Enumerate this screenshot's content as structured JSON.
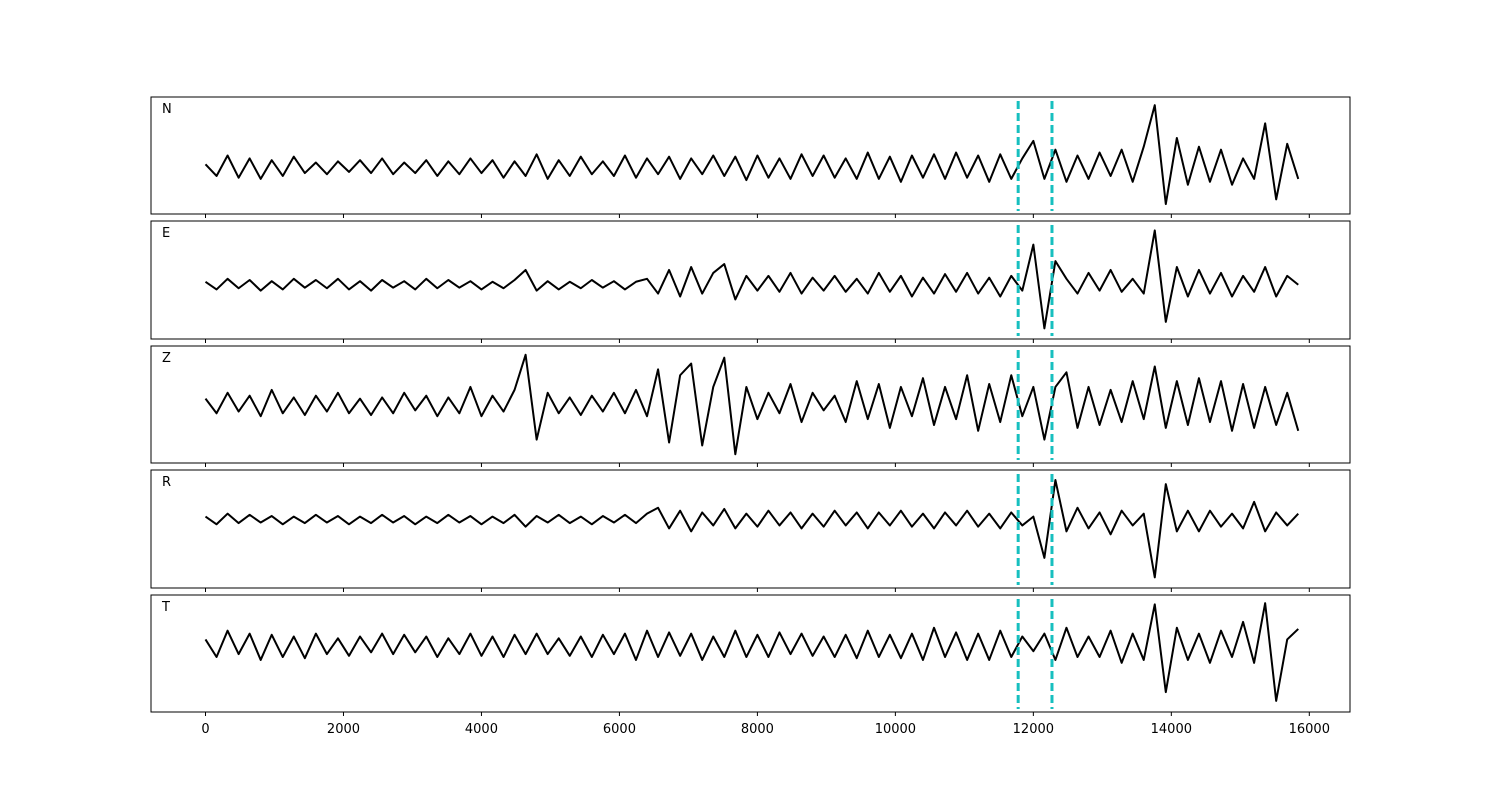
{
  "chart_data": {
    "type": "line",
    "x": [
      0,
      160,
      320,
      480,
      640,
      800,
      960,
      1120,
      1280,
      1440,
      1600,
      1760,
      1920,
      2080,
      2240,
      2400,
      2560,
      2720,
      2880,
      3040,
      3200,
      3360,
      3520,
      3680,
      3840,
      4000,
      4160,
      4320,
      4480,
      4640,
      4800,
      4960,
      5120,
      5280,
      5440,
      5600,
      5760,
      5920,
      6080,
      6240,
      6400,
      6560,
      6720,
      6880,
      7040,
      7200,
      7360,
      7520,
      7680,
      7840,
      8000,
      8160,
      8320,
      8480,
      8640,
      8800,
      8960,
      9120,
      9280,
      9440,
      9600,
      9760,
      9920,
      10080,
      10240,
      10400,
      10560,
      10720,
      10880,
      11040,
      11200,
      11360,
      11520,
      11680,
      11840,
      12000,
      12160,
      12320,
      12480,
      12640,
      12800,
      12960,
      13120,
      13280,
      13440,
      13600,
      13760,
      13920,
      14080,
      14240,
      14400,
      14560,
      14720,
      14880,
      15040,
      15200,
      15360,
      15520,
      15680,
      15840
    ],
    "xlim": [
      -790,
      16590
    ],
    "xticks": [
      0,
      2000,
      4000,
      6000,
      8000,
      10000,
      12000,
      14000,
      16000
    ],
    "markers": [
      11780,
      12270
    ],
    "marker_color": "#17bfbf",
    "series": [
      {
        "name": "N",
        "color": "#000000",
        "ylim": [
          -0.8,
          1.2
        ],
        "values": [
          0.05,
          -0.15,
          0.2,
          -0.18,
          0.15,
          -0.2,
          0.12,
          -0.15,
          0.18,
          -0.1,
          0.08,
          -0.12,
          0.1,
          -0.08,
          0.12,
          -0.1,
          0.15,
          -0.12,
          0.08,
          -0.1,
          0.12,
          -0.15,
          0.1,
          -0.12,
          0.15,
          -0.1,
          0.12,
          -0.18,
          0.1,
          -0.15,
          0.22,
          -0.2,
          0.12,
          -0.15,
          0.18,
          -0.12,
          0.1,
          -0.15,
          0.2,
          -0.18,
          0.15,
          -0.12,
          0.18,
          -0.2,
          0.15,
          -0.12,
          0.2,
          -0.15,
          0.18,
          -0.22,
          0.2,
          -0.18,
          0.15,
          -0.2,
          0.22,
          -0.15,
          0.2,
          -0.18,
          0.15,
          -0.2,
          0.25,
          -0.2,
          0.18,
          -0.25,
          0.2,
          -0.18,
          0.22,
          -0.2,
          0.25,
          -0.18,
          0.2,
          -0.25,
          0.22,
          -0.2,
          0.15,
          0.45,
          -0.2,
          0.3,
          -0.25,
          0.2,
          -0.2,
          0.25,
          -0.15,
          0.3,
          -0.25,
          0.35,
          1.06,
          -0.63,
          0.5,
          -0.3,
          0.35,
          -0.25,
          0.3,
          -0.3,
          0.15,
          -0.2,
          0.75,
          -0.55,
          0.4,
          -0.2
        ]
      },
      {
        "name": "E",
        "color": "#000000",
        "ylim": [
          -0.92,
          1.08
        ],
        "values": [
          0.05,
          -0.08,
          0.1,
          -0.06,
          0.08,
          -0.1,
          0.06,
          -0.08,
          0.1,
          -0.05,
          0.08,
          -0.06,
          0.1,
          -0.08,
          0.06,
          -0.1,
          0.08,
          -0.05,
          0.06,
          -0.08,
          0.1,
          -0.06,
          0.08,
          -0.05,
          0.06,
          -0.08,
          0.05,
          -0.06,
          0.08,
          0.25,
          -0.1,
          0.06,
          -0.08,
          0.05,
          -0.06,
          0.08,
          -0.05,
          0.06,
          -0.08,
          0.05,
          0.1,
          -0.15,
          0.25,
          -0.2,
          0.3,
          -0.15,
          0.2,
          0.35,
          -0.25,
          0.15,
          -0.1,
          0.15,
          -0.12,
          0.2,
          -0.15,
          0.12,
          -0.1,
          0.15,
          -0.12,
          0.1,
          -0.15,
          0.2,
          -0.12,
          0.15,
          -0.2,
          0.12,
          -0.15,
          0.18,
          -0.12,
          0.2,
          -0.15,
          0.12,
          -0.2,
          0.15,
          -0.1,
          0.68,
          -0.74,
          0.4,
          0.1,
          -0.15,
          0.2,
          -0.1,
          0.25,
          -0.12,
          0.1,
          -0.15,
          0.92,
          -0.63,
          0.3,
          -0.2,
          0.25,
          -0.15,
          0.2,
          -0.2,
          0.15,
          -0.12,
          0.3,
          -0.2,
          0.15,
          0
        ]
      },
      {
        "name": "Z",
        "color": "#000000",
        "ylim": [
          -1,
          1
        ],
        "values": [
          0.1,
          -0.15,
          0.2,
          -0.12,
          0.15,
          -0.2,
          0.25,
          -0.15,
          0.12,
          -0.18,
          0.15,
          -0.12,
          0.2,
          -0.15,
          0.1,
          -0.18,
          0.12,
          -0.15,
          0.2,
          -0.1,
          0.15,
          -0.2,
          0.12,
          -0.15,
          0.3,
          -0.2,
          0.15,
          -0.12,
          0.25,
          0.85,
          -0.6,
          0.2,
          -0.15,
          0.12,
          -0.18,
          0.15,
          -0.12,
          0.2,
          -0.15,
          0.25,
          -0.2,
          0.6,
          -0.65,
          0.5,
          0.7,
          -0.7,
          0.3,
          0.8,
          -0.85,
          0.3,
          -0.25,
          0.2,
          -0.15,
          0.35,
          -0.3,
          0.2,
          -0.1,
          0.15,
          -0.3,
          0.4,
          -0.25,
          0.35,
          -0.4,
          0.3,
          -0.2,
          0.45,
          -0.35,
          0.3,
          -0.25,
          0.5,
          -0.45,
          0.35,
          -0.3,
          0.5,
          -0.2,
          0.3,
          -0.6,
          0.3,
          0.55,
          -0.4,
          0.3,
          -0.35,
          0.25,
          -0.3,
          0.4,
          -0.25,
          0.65,
          -0.4,
          0.4,
          -0.35,
          0.45,
          -0.3,
          0.4,
          -0.45,
          0.35,
          -0.4,
          0.3,
          -0.35,
          0.2,
          -0.45
        ]
      },
      {
        "name": "R",
        "color": "#000000",
        "ylim": [
          -1.16,
          0.84
        ],
        "values": [
          0.05,
          -0.08,
          0.1,
          -0.06,
          0.08,
          -0.05,
          0.06,
          -0.08,
          0.05,
          -0.06,
          0.08,
          -0.05,
          0.06,
          -0.08,
          0.05,
          -0.06,
          0.08,
          -0.05,
          0.06,
          -0.08,
          0.05,
          -0.06,
          0.08,
          -0.05,
          0.06,
          -0.08,
          0.05,
          -0.06,
          0.08,
          -0.12,
          0.06,
          -0.05,
          0.08,
          -0.06,
          0.05,
          -0.08,
          0.06,
          -0.05,
          0.08,
          -0.06,
          0.1,
          0.2,
          -0.15,
          0.15,
          -0.2,
          0.12,
          -0.1,
          0.18,
          -0.15,
          0.1,
          -0.12,
          0.15,
          -0.1,
          0.12,
          -0.15,
          0.1,
          -0.12,
          0.15,
          -0.1,
          0.12,
          -0.15,
          0.12,
          -0.1,
          0.15,
          -0.12,
          0.1,
          -0.15,
          0.12,
          -0.1,
          0.15,
          -0.12,
          0.1,
          -0.15,
          0.12,
          -0.1,
          0.05,
          -0.65,
          0.67,
          -0.2,
          0.2,
          -0.15,
          0.12,
          -0.25,
          0.15,
          -0.1,
          0.1,
          -0.98,
          0.6,
          -0.2,
          0.15,
          -0.2,
          0.15,
          -0.12,
          0.1,
          -0.15,
          0.3,
          -0.2,
          0.12,
          -0.1,
          0.1
        ]
      },
      {
        "name": "T",
        "color": "#000000",
        "ylim": [
          -1.14,
          0.86
        ],
        "values": [
          0.1,
          -0.2,
          0.25,
          -0.15,
          0.2,
          -0.25,
          0.18,
          -0.2,
          0.15,
          -0.22,
          0.2,
          -0.15,
          0.12,
          -0.18,
          0.15,
          -0.12,
          0.2,
          -0.15,
          0.18,
          -0.12,
          0.15,
          -0.2,
          0.12,
          -0.15,
          0.2,
          -0.18,
          0.15,
          -0.2,
          0.18,
          -0.15,
          0.2,
          -0.15,
          0.12,
          -0.18,
          0.15,
          -0.2,
          0.18,
          -0.15,
          0.2,
          -0.25,
          0.25,
          -0.2,
          0.22,
          -0.18,
          0.2,
          -0.25,
          0.15,
          -0.2,
          0.25,
          -0.2,
          0.18,
          -0.2,
          0.22,
          -0.15,
          0.2,
          -0.18,
          0.15,
          -0.2,
          0.18,
          -0.22,
          0.25,
          -0.2,
          0.18,
          -0.22,
          0.2,
          -0.25,
          0.3,
          -0.2,
          0.22,
          -0.25,
          0.2,
          -0.25,
          0.25,
          -0.2,
          0.15,
          -0.1,
          0.2,
          -0.25,
          0.3,
          -0.2,
          0.15,
          -0.2,
          0.25,
          -0.3,
          0.2,
          -0.25,
          0.7,
          -0.8,
          0.3,
          -0.25,
          0.2,
          -0.3,
          0.25,
          -0.2,
          0.4,
          -0.3,
          0.72,
          -0.95,
          0.1,
          0.28
        ]
      }
    ]
  }
}
